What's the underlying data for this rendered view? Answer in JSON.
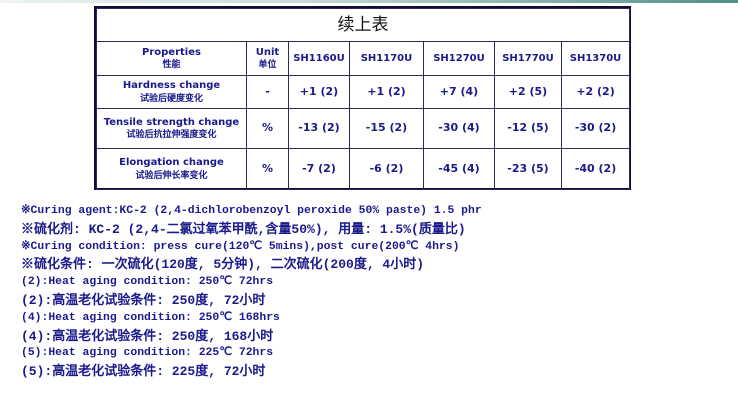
{
  "table": {
    "title": "续上表",
    "headers": {
      "property_en": "Properties",
      "property_zh": "性能",
      "unit_en": "Unit",
      "unit_zh": "单位",
      "products": [
        "SH1160U",
        "SH1170U",
        "SH1270U",
        "SH1770U",
        "SH1370U"
      ]
    },
    "rows": [
      {
        "en": "Hardness change",
        "zh": "试验后硬度变化",
        "unit": "-",
        "values": [
          "+1 (2)",
          "+1 (2)",
          "+7 (4)",
          "+2 (5)",
          "+2 (2)"
        ]
      },
      {
        "en": "Tensile strength change",
        "zh": "试验后抗拉伸强度变化",
        "unit": "%",
        "values": [
          "-13 (2)",
          "-15 (2)",
          "-30 (4)",
          "-12 (5)",
          "-30 (2)"
        ]
      },
      {
        "en": "Elongation change",
        "zh": "试验后伸长率变化",
        "unit": "%",
        "values": [
          "-7 (2)",
          "-6 (2)",
          "-45 (4)",
          "-23 (5)",
          "-40 (2)"
        ]
      }
    ]
  },
  "notes": [
    "※Curing agent:KC-2 (2,4-dichlorobenzoyl peroxide 50% paste) 1.5 phr",
    "※硫化剂: KC-2 (2,4-二氯过氧苯甲酰,含量50%), 用量: 1.5%(质量比)",
    "※Curing condition: press cure(120℃ 5mins),post cure(200℃ 4hrs)",
    "※硫化条件: 一次硫化(120度, 5分钟), 二次硫化(200度, 4小时)",
    "(2):Heat aging condition: 250℃ 72hrs",
    "(2):高温老化试验条件: 250度, 72小时",
    "(4):Heat aging condition: 250℃ 168hrs",
    "(4):高温老化试验条件: 250度, 168小时",
    "(5):Heat aging condition: 225℃ 72hrs",
    "(5):高温老化试验条件: 225度, 72小时"
  ],
  "colors": {
    "text": "#1a1a8c",
    "border": "#0d0d3a",
    "accent_bar": "#4f8f86"
  }
}
